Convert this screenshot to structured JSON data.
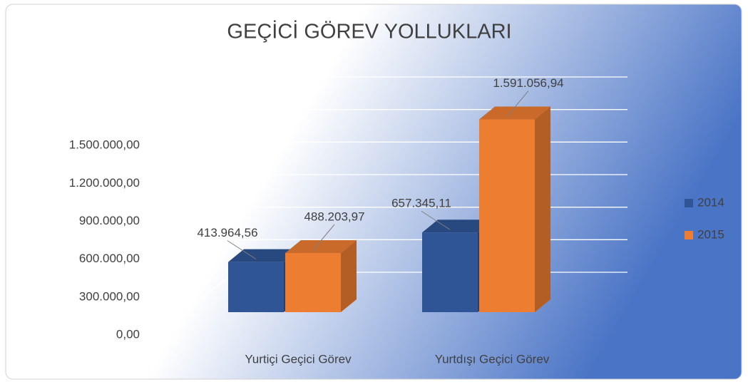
{
  "chart_data": {
    "type": "bar3d",
    "title": "GEÇİCİ GÖREV YOLLUKLARI",
    "categories": [
      "Yurtiçi Geçici Görev",
      "Yurtdışı Geçici Görev"
    ],
    "series": [
      {
        "name": "2014",
        "color": "#2f5597",
        "values": [
          413964.56,
          657345.11
        ],
        "value_labels": [
          "413.964,56",
          "657.345,11"
        ]
      },
      {
        "name": "2015",
        "color": "#ed7d31",
        "values": [
          488203.97,
          1591056.94
        ],
        "value_labels": [
          "488.203,97",
          "1.591.056,94"
        ]
      }
    ],
    "ylim": [
      0,
      1800000
    ],
    "yticks": [
      {
        "value": 0,
        "label": "0,00"
      },
      {
        "value": 300000,
        "label": "300.000,00"
      },
      {
        "value": 600000,
        "label": "600.000,00"
      },
      {
        "value": 900000,
        "label": "900.000,00"
      },
      {
        "value": 1200000,
        "label": "1.200.000,00"
      },
      {
        "value": 1500000,
        "label": "1.500.000,00"
      }
    ],
    "grid": true,
    "legend": "right"
  }
}
